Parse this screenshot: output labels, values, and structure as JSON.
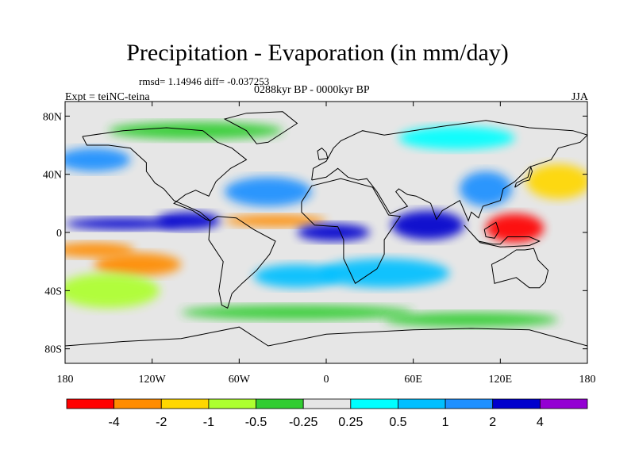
{
  "title": "Precipitation - Evaporation (in mm/day)",
  "stats": "rmsd= 1.14946 diff= -0.037253",
  "period": "0288kyr BP - 0000kyr BP",
  "experiment": "Expt = teiNC-teina",
  "season": "JJA",
  "map": {
    "lon_range": [
      -180,
      180
    ],
    "lat_range": [
      -90,
      90
    ],
    "background_color": "#e6e6e6",
    "coastline_color": "#000000",
    "lat_ticks": [
      {
        "value": 80,
        "label": "80N"
      },
      {
        "value": 40,
        "label": "40N"
      },
      {
        "value": 0,
        "label": "0"
      },
      {
        "value": -40,
        "label": "40S"
      },
      {
        "value": -80,
        "label": "80S"
      }
    ],
    "lon_ticks": [
      {
        "value": -180,
        "label": "180"
      },
      {
        "value": -120,
        "label": "120W"
      },
      {
        "value": -60,
        "label": "60W"
      },
      {
        "value": 0,
        "label": "0"
      },
      {
        "value": 60,
        "label": "60E"
      },
      {
        "value": 120,
        "label": "120E"
      },
      {
        "value": 180,
        "label": "180"
      }
    ],
    "regions": [
      {
        "name": "south-pacific-dry-band",
        "level": -3,
        "lon": -160,
        "lat": -12,
        "rlon": 28,
        "rlat": 5
      },
      {
        "name": "west-pacific-dry-core",
        "level": -5,
        "lon": 130,
        "lat": 3,
        "rlon": 20,
        "rlat": 10
      },
      {
        "name": "south-pacific-dry-tail",
        "level": -2,
        "lon": -130,
        "lat": -22,
        "rlon": 30,
        "rlat": 8
      },
      {
        "name": "east-pacific-wet",
        "level": 4,
        "lon": -95,
        "lat": 8,
        "rlon": 22,
        "rlat": 6
      },
      {
        "name": "itcz-pacific",
        "level": 3,
        "lon": -140,
        "lat": 6,
        "rlon": 40,
        "rlat": 4
      },
      {
        "name": "atlantic-dry",
        "level": -3,
        "lon": -35,
        "lat": 8,
        "rlon": 35,
        "rlat": 4
      },
      {
        "name": "north-atlantic-wet",
        "level": 2,
        "lon": -40,
        "lat": 28,
        "rlon": 30,
        "rlat": 10
      },
      {
        "name": "africa-sahel-wet",
        "level": 3,
        "lon": 5,
        "lat": 0,
        "rlon": 25,
        "rlat": 6
      },
      {
        "name": "indian-ocean-wet",
        "level": 3,
        "lon": 70,
        "lat": 5,
        "rlon": 25,
        "rlat": 10
      },
      {
        "name": "south-indian-wet",
        "level": 1,
        "lon": 40,
        "lat": -28,
        "rlon": 45,
        "rlat": 10
      },
      {
        "name": "east-asia-wet",
        "level": 2,
        "lon": 110,
        "lat": 30,
        "rlon": 18,
        "rlat": 12
      },
      {
        "name": "north-pacific-dry",
        "level": -1,
        "lon": 160,
        "lat": 35,
        "rlon": 22,
        "rlat": 12
      },
      {
        "name": "north-pacific-wet",
        "level": 2,
        "lon": -160,
        "lat": 50,
        "rlon": 25,
        "rlat": 8
      },
      {
        "name": "south-atlantic-wet",
        "level": 1,
        "lon": -20,
        "lat": -30,
        "rlon": 30,
        "rlat": 8
      },
      {
        "name": "southern-ocean-green",
        "level": -0.3,
        "lon": -20,
        "lat": -55,
        "rlon": 80,
        "rlat": 5
      },
      {
        "name": "southern-ocean-green-2",
        "level": -0.3,
        "lon": 100,
        "lat": -60,
        "rlon": 60,
        "rlat": 5
      },
      {
        "name": "siberia-wet",
        "level": 0.4,
        "lon": 90,
        "lat": 65,
        "rlon": 40,
        "rlat": 8
      },
      {
        "name": "arctic-green",
        "level": -0.4,
        "lon": -90,
        "lat": 70,
        "rlon": 60,
        "rlat": 6
      },
      {
        "name": "south-pacific-green",
        "level": -0.6,
        "lon": -150,
        "lat": -40,
        "rlon": 35,
        "rlat": 12
      }
    ]
  },
  "colorbar": {
    "labels": [
      "-4",
      "-2",
      "-1",
      "-0.5",
      "-0.25",
      "0.25",
      "0.5",
      "1",
      "2",
      "4"
    ],
    "colors": [
      "#ff0000",
      "#ff8c00",
      "#ffd700",
      "#adff2f",
      "#32cd32",
      "#e6e6e6",
      "#00ffff",
      "#00bfff",
      "#1e90ff",
      "#0000cd",
      "#9400d3"
    ]
  }
}
